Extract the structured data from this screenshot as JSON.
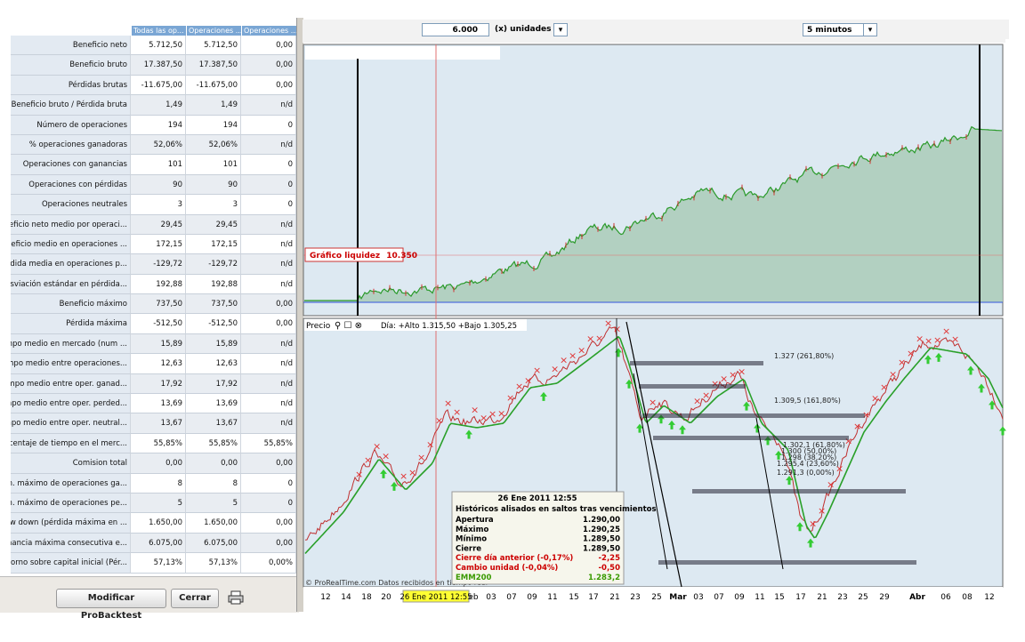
{
  "toolbar": {
    "quantity": "6.000",
    "units": "(x) unidades",
    "timeframe": "5 minutos"
  },
  "table": {
    "header": [
      "Todas las op...",
      "Operaciones ...",
      "Operaciones ..."
    ],
    "rows": [
      [
        "Beneficio neto",
        "5.712,50",
        "5.712,50",
        "0,00"
      ],
      [
        "Beneficio bruto",
        "17.387,50",
        "17.387,50",
        "0,00"
      ],
      [
        "Pérdidas brutas",
        "-11.675,00",
        "-11.675,00",
        "0,00"
      ],
      [
        "Beneficio bruto / Pérdida bruta",
        "1,49",
        "1,49",
        "n/d"
      ],
      [
        "Número de operaciones",
        "194",
        "194",
        "0"
      ],
      [
        "% operaciones ganadoras",
        "52,06%",
        "52,06%",
        "n/d"
      ],
      [
        "Operaciones con ganancias",
        "101",
        "101",
        "0"
      ],
      [
        "Operaciones con pérdidas",
        "90",
        "90",
        "0"
      ],
      [
        "Operaciones neutrales",
        "3",
        "3",
        "0"
      ],
      [
        "Beneficio neto medio por operaci...",
        "29,45",
        "29,45",
        "n/d"
      ],
      [
        "Beneficio medio en operaciones ...",
        "172,15",
        "172,15",
        "n/d"
      ],
      [
        "Pérdida media en operaciones p...",
        "-129,72",
        "-129,72",
        "n/d"
      ],
      [
        "Desviación estándar en pérdida...",
        "192,88",
        "192,88",
        "n/d"
      ],
      [
        "Beneficio máximo",
        "737,50",
        "737,50",
        "0,00"
      ],
      [
        "Pérdida máxima",
        "-512,50",
        "-512,50",
        "0,00"
      ],
      [
        "Tiempo medio en mercado (num ...",
        "15,89",
        "15,89",
        "n/d"
      ],
      [
        "Tiempo medio entre operaciones...",
        "12,63",
        "12,63",
        "n/d"
      ],
      [
        "Tiempo medio entre oper. ganad...",
        "17,92",
        "17,92",
        "n/d"
      ],
      [
        "Tiempo medio entre oper. perded...",
        "13,69",
        "13,69",
        "n/d"
      ],
      [
        "Tiempo medio entre oper. neutral...",
        "13,67",
        "13,67",
        "n/d"
      ],
      [
        "Porcentaje de tiempo en el merc...",
        "55,85%",
        "55,85%",
        "55,85%"
      ],
      [
        "Comision total",
        "0,00",
        "0,00",
        "0,00"
      ],
      [
        "Num. máximo de operaciones ga...",
        "8",
        "8",
        "0"
      ],
      [
        "Num. máximo de operaciones pe...",
        "5",
        "5",
        "0"
      ],
      [
        "Draw down (pérdida máxima en ...",
        "1.650,00",
        "1.650,00",
        "0,00"
      ],
      [
        "Ganancia máxima consecutiva e...",
        "6.075,00",
        "6.075,00",
        "0,00"
      ],
      [
        "Retorno sobre capital inicial (Pér...",
        "57,13%",
        "57,13%",
        "0,00%"
      ]
    ]
  },
  "buttons": [
    "Modificar ProBacktest",
    "Cerrar"
  ],
  "equity_chart": {
    "label": "Gráfico liquidez",
    "value": "10.350"
  },
  "price_chart": {
    "title": "Precio",
    "info": "Día: +Alto 1.315,50 +Bajo 1.305,25",
    "fib_labels": [
      "1.327 (261,80%)",
      "1.309,5 (161,80%)",
      "1.302,1 (61,80%)",
      "1.300 (50,00%)",
      "1.298 (38,20%)",
      "1.295,4 (23,60%)",
      "1.291,3 (0,00%)"
    ],
    "footer": "© ProRealTime.com  Datos recibidos en tiempo real",
    "tooltip": {
      "date": "26 Ene 2011 12:55",
      "subtitle": "Históricos alisados en saltos tras vencimientos",
      "rows": [
        [
          "Apertura",
          "1.290,00"
        ],
        [
          "Máximo",
          "1.290,25"
        ],
        [
          "Mínimo",
          "1.289,50"
        ],
        [
          "Cierre",
          "1.289,50"
        ],
        [
          "Cierre día anterior (-0,17%)",
          "-2,25"
        ],
        [
          "Cambio unidad (-0,04%)",
          "-0,50"
        ],
        [
          "EMM200",
          "1.283,2"
        ]
      ]
    },
    "x_labels": [
      "12",
      "14",
      "18",
      "20",
      "eb",
      "03",
      "07",
      "09",
      "11",
      "15",
      "17",
      "21",
      "23",
      "25",
      "Mar",
      "03",
      "07",
      "09",
      "11",
      "15",
      "17",
      "21",
      "23",
      "25",
      "29",
      "Abr",
      "06",
      "08",
      "12"
    ],
    "x_highlight": "26 Ene 2011 12:55"
  }
}
